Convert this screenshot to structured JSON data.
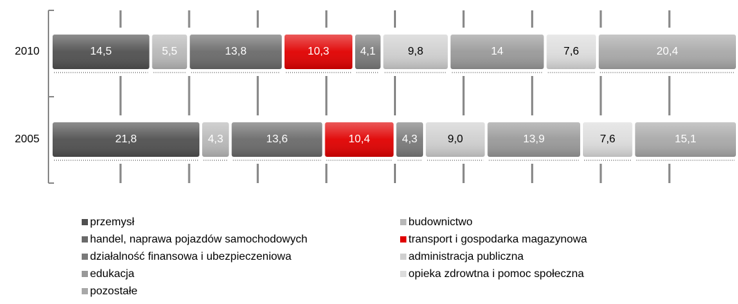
{
  "chart_data": {
    "type": "stacked-bar-horizontal",
    "categories": [
      "2010",
      "2005"
    ],
    "xlim": [
      0,
      100
    ],
    "xticks": [
      0,
      10,
      20,
      30,
      40,
      50,
      60,
      70,
      80,
      90,
      100
    ],
    "grid": true,
    "series": [
      {
        "name": "przemysł",
        "color": "#505050",
        "values": [
          14.5,
          21.8
        ],
        "value_labels": [
          "14,5",
          "21,8"
        ]
      },
      {
        "name": "budownictwo",
        "color": "#b8b8b8",
        "values": [
          5.5,
          4.3
        ],
        "value_labels": [
          "5,5",
          "4,3"
        ]
      },
      {
        "name": "handel, naprawa pojazdów samochodowych",
        "color": "#6a6a6a",
        "values": [
          13.8,
          13.6
        ],
        "value_labels": [
          "13,8",
          "13,6"
        ]
      },
      {
        "name": "transport i gospodarka magazynowa",
        "color": "#e00000",
        "values": [
          10.3,
          10.4
        ],
        "value_labels": [
          "10,3",
          "10,4"
        ]
      },
      {
        "name": "działalność finansowa i ubezpieczeniowa",
        "color": "#7a7a7a",
        "values": [
          4.1,
          4.3
        ],
        "value_labels": [
          "4,1",
          "4,3"
        ]
      },
      {
        "name": "administracja publiczna",
        "color": "#cfcfcf",
        "values": [
          9.8,
          9.0
        ],
        "value_labels": [
          "9,8",
          "9,0"
        ]
      },
      {
        "name": "edukacja",
        "color": "#999999",
        "values": [
          14,
          13.9
        ],
        "value_labels": [
          "14",
          "13,9"
        ]
      },
      {
        "name": "opieka zdrowtna i pomoc społeczna",
        "color": "#dcdcdc",
        "values": [
          7.6,
          7.6
        ],
        "value_labels": [
          "7,6",
          "7,6"
        ]
      },
      {
        "name": "pozostałe",
        "color": "#a8a8a8",
        "values": [
          20.4,
          15.1
        ],
        "value_labels": [
          "20,4",
          "15,1"
        ]
      }
    ]
  }
}
